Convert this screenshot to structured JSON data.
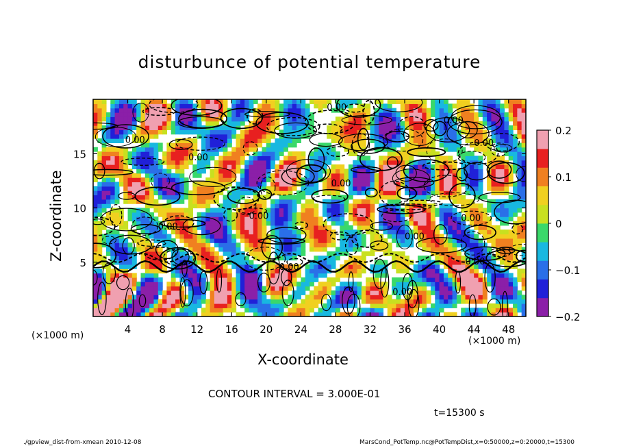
{
  "chart_data": {
    "type": "heatmap",
    "title": "disturbunce of potential temperature",
    "xlabel": "X-coordinate",
    "ylabel": "Z-coordinate",
    "x_unit_left": "(×1000 m)",
    "x_unit_right": "(×1000 m)",
    "xlim": [
      0,
      50
    ],
    "ylim": [
      0,
      20
    ],
    "x_ticks": [
      4,
      8,
      12,
      16,
      20,
      24,
      28,
      32,
      36,
      40,
      44,
      48
    ],
    "y_ticks": [
      5,
      10,
      15
    ],
    "colorbar": {
      "range": [
        -0.2,
        0.2
      ],
      "ticks": [
        "0.2",
        "0.1",
        "0",
        "−0.1",
        "−0.2"
      ],
      "tick_values": [
        0.2,
        0.1,
        0,
        -0.1,
        -0.2
      ],
      "colors": [
        "#8b1fa8",
        "#2020d8",
        "#2a6fe8",
        "#18b8e0",
        "#3ad86a",
        "#c8e020",
        "#f0d020",
        "#f08020",
        "#e82020",
        "#f0a0b0"
      ]
    },
    "contour_labels": [
      {
        "text": "0.00",
        "x": 3.7,
        "z": 16.0
      },
      {
        "text": "0.00",
        "x": 11.0,
        "z": 14.4
      },
      {
        "text": "0.00",
        "x": 18.0,
        "z": 9.0
      },
      {
        "text": "0.00",
        "x": 27.5,
        "z": 12.0
      },
      {
        "text": "0.00",
        "x": 36.0,
        "z": 7.1
      },
      {
        "text": "0.00",
        "x": 42.5,
        "z": 8.8
      },
      {
        "text": "0.00",
        "x": 43.0,
        "z": 4.8
      },
      {
        "text": "0.00",
        "x": 44.0,
        "z": 15.7
      },
      {
        "text": "0.00",
        "x": 34.6,
        "z": 2.0
      },
      {
        "text": "0.00",
        "x": 21.5,
        "z": 4.3
      },
      {
        "text": "0.00",
        "x": 7.5,
        "z": 8.0
      },
      {
        "text": "0.00",
        "x": 27.0,
        "z": 19.0
      },
      {
        "text": "0.00",
        "x": 40.5,
        "z": 17.8
      }
    ],
    "contour_interval": "CONTOUR INTERVAL = 3.000E-01"
  },
  "time_label": "t=15300 s",
  "footer_left": "./gpview_dist-from-xmean  2010-12-08",
  "footer_right": "MarsCond_PotTemp.nc@PotTempDist,x=0:50000,z=0:20000,t=15300"
}
